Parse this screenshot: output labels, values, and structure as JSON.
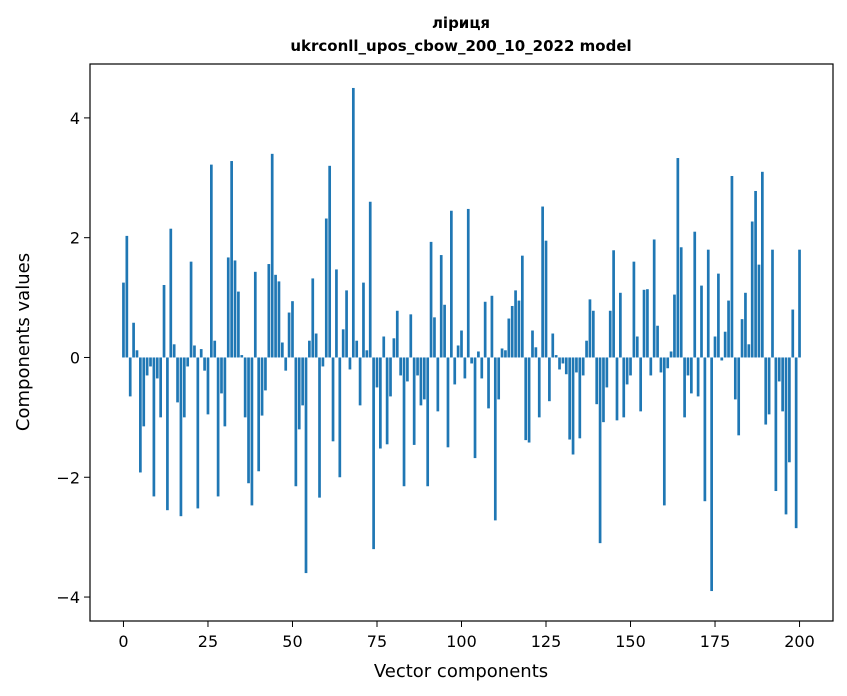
{
  "chart_data": {
    "type": "bar",
    "title": "ліриця",
    "subtitle": "ukrconll_upos_cbow_200_10_2022 model",
    "xlabel": "Vector components",
    "ylabel": "Components values",
    "xlim": [
      -9.9,
      209.9
    ],
    "ylim": [
      -4.4,
      4.9
    ],
    "xticks": [
      0,
      25,
      50,
      75,
      100,
      125,
      150,
      175,
      200
    ],
    "yticks": [
      -4,
      -2,
      0,
      2,
      4
    ],
    "xtick_labels": [
      "0",
      "25",
      "50",
      "75",
      "100",
      "125",
      "150",
      "175",
      "200"
    ],
    "ytick_labels": [
      "−4",
      "−2",
      "0",
      "2",
      "4"
    ],
    "grid": false,
    "bar_color": "#1f77b4",
    "values": [
      1.25,
      2.03,
      -0.65,
      0.58,
      0.12,
      -1.92,
      -1.15,
      -0.3,
      -0.15,
      -2.32,
      -0.35,
      -1.0,
      1.21,
      -2.55,
      2.15,
      0.22,
      -0.75,
      -2.65,
      -1.0,
      -0.15,
      1.6,
      0.2,
      -2.52,
      0.14,
      -0.22,
      -0.95,
      3.22,
      0.28,
      -2.32,
      -0.6,
      -1.15,
      1.67,
      3.28,
      1.62,
      1.1,
      0.04,
      -1.0,
      -2.1,
      -2.47,
      1.43,
      -1.9,
      -0.97,
      -0.55,
      1.56,
      3.4,
      1.38,
      1.27,
      0.25,
      -0.22,
      0.75,
      0.94,
      -2.15,
      -1.2,
      -0.8,
      -3.6,
      0.28,
      1.32,
      0.4,
      -2.34,
      -0.15,
      2.32,
      3.2,
      -1.4,
      1.47,
      -2.0,
      0.47,
      1.12,
      -0.2,
      4.5,
      0.28,
      -0.8,
      1.25,
      0.12,
      2.6,
      -3.2,
      -0.5,
      -1.52,
      0.35,
      -1.45,
      -0.65,
      0.32,
      0.78,
      -0.3,
      -2.15,
      -0.4,
      0.72,
      -1.46,
      -0.3,
      -0.8,
      -0.7,
      -2.15,
      1.93,
      0.67,
      -0.9,
      1.71,
      0.88,
      -1.5,
      2.45,
      -0.45,
      0.2,
      0.45,
      -0.35,
      2.48,
      -0.1,
      -1.68,
      0.1,
      -0.35,
      0.93,
      -0.85,
      1.03,
      -2.72,
      -0.7,
      0.15,
      0.12,
      0.65,
      0.86,
      1.12,
      0.95,
      1.7,
      -1.38,
      -1.42,
      0.45,
      0.17,
      -1.0,
      2.52,
      1.95,
      -0.73,
      0.4,
      0.04,
      -0.2,
      -0.1,
      -0.28,
      -1.37,
      -1.62,
      -0.25,
      -1.35,
      -0.3,
      0.28,
      0.97,
      0.78,
      -0.78,
      -3.1,
      -1.08,
      -0.5,
      0.78,
      1.79,
      -1.05,
      1.08,
      -1.0,
      -0.45,
      -0.3,
      1.6,
      0.35,
      -0.9,
      1.13,
      1.14,
      -0.3,
      1.97,
      0.53,
      -0.25,
      -2.47,
      -0.18,
      0.1,
      1.05,
      3.33,
      1.84,
      -1.0,
      -0.3,
      -0.6,
      2.1,
      -0.65,
      1.2,
      -2.4,
      1.8,
      -3.9,
      0.35,
      1.4,
      -0.05,
      0.43,
      0.95,
      3.03,
      -0.7,
      -1.3,
      0.64,
      1.08,
      0.22,
      2.27,
      2.78,
      1.55,
      3.1,
      -1.12,
      -0.95,
      1.8,
      -2.23,
      -0.4,
      -0.9,
      -2.62,
      -1.75,
      0.8,
      -2.85,
      1.8
    ]
  }
}
